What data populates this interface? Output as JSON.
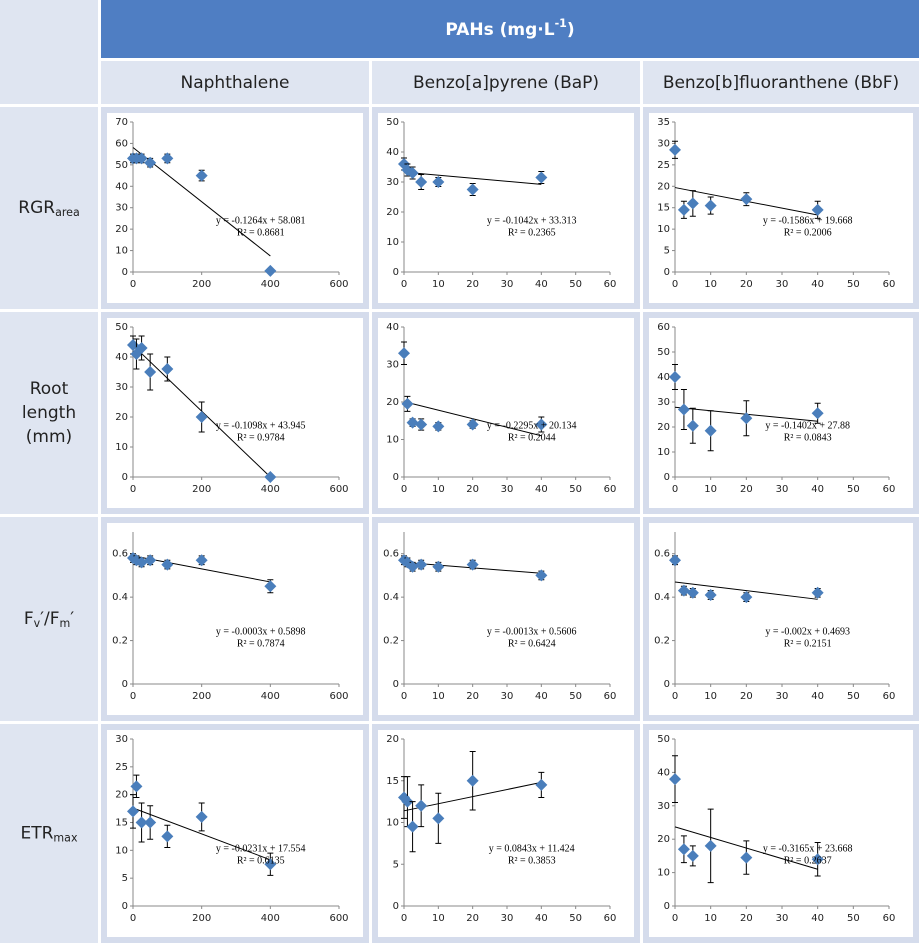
{
  "table": {
    "header": [
      {
        "text": "PAHs (mg·L"
      },
      {
        "text": "-1",
        "sup": true
      },
      {
        "text": ")"
      }
    ],
    "columns": [
      "Naphthalene",
      "Benzo[a]pyrene (BaP)",
      "Benzo[b]fluoranthene (BbF)"
    ],
    "rows": [
      [
        [
          {
            "text": "RGR"
          },
          {
            "text": "area",
            "sub": true
          }
        ]
      ],
      [
        [
          {
            "text": "Root"
          }
        ],
        [
          {
            "text": "length"
          }
        ],
        [
          {
            "text": "(mm)"
          }
        ]
      ],
      [
        [
          {
            "text": "F"
          },
          {
            "text": "v",
            "sub": true
          },
          {
            "text": "′/F"
          },
          {
            "text": "m",
            "sub": true
          },
          {
            "text": "′"
          }
        ]
      ],
      [
        [
          {
            "text": "ETR"
          },
          {
            "text": "max",
            "sub": true
          }
        ]
      ]
    ]
  },
  "chart_data": [
    {
      "type": "scatter",
      "x": [
        0,
        10,
        25,
        50,
        100,
        200,
        400
      ],
      "series": [
        {
          "color": "#4a7ebb",
          "values": [
            53,
            53,
            53,
            51,
            53,
            45,
            0.5
          ],
          "errors": [
            2,
            2,
            2,
            2,
            2,
            2.5,
            0.5
          ]
        }
      ],
      "trendline": {
        "x": [
          0,
          400
        ],
        "y": [
          58.1,
          7.5
        ]
      },
      "equation": "y = -0.1264x + 58.081",
      "r_squared": "R² = 0.8681",
      "xlim": [
        0,
        600
      ],
      "xticks": [
        0,
        200,
        400,
        600
      ],
      "ylim": [
        0,
        70
      ],
      "yticks": [
        0,
        10,
        20,
        30,
        40,
        50,
        60,
        70
      ]
    },
    {
      "type": "scatter",
      "x": [
        0,
        1,
        2.5,
        5,
        10,
        20,
        40
      ],
      "series": [
        {
          "color": "#4a7ebb",
          "values": [
            36,
            34,
            33,
            30,
            30,
            27.5,
            31.5
          ],
          "errors": [
            2,
            2,
            2,
            2.5,
            1.5,
            2,
            2
          ]
        }
      ],
      "trendline": {
        "x": [
          0,
          40
        ],
        "y": [
          33.3,
          29.2
        ]
      },
      "equation": "y = -0.1042x + 33.313",
      "r_squared": "R² = 0.2365",
      "xlim": [
        0,
        60
      ],
      "xticks": [
        0,
        10,
        20,
        30,
        40,
        50,
        60
      ],
      "ylim": [
        0,
        50
      ],
      "yticks": [
        0,
        10,
        20,
        30,
        40,
        50
      ]
    },
    {
      "type": "scatter",
      "x": [
        0,
        2.5,
        5,
        10,
        20,
        40
      ],
      "series": [
        {
          "color": "#4a7ebb",
          "values": [
            28.5,
            14.5,
            16,
            15.5,
            17,
            14.5
          ],
          "errors": [
            2,
            2,
            3,
            2,
            1.5,
            2
          ]
        }
      ],
      "trendline": {
        "x": [
          0,
          40
        ],
        "y": [
          19.7,
          13.3
        ]
      },
      "equation": "y = -0.1586x + 19.668",
      "r_squared": "R² = 0.2006",
      "xlim": [
        0,
        60
      ],
      "xticks": [
        0,
        10,
        20,
        30,
        40,
        50,
        60
      ],
      "ylim": [
        0,
        35
      ],
      "yticks": [
        0,
        5,
        10,
        15,
        20,
        25,
        30,
        35
      ]
    },
    {
      "type": "scatter",
      "x": [
        0,
        10,
        25,
        50,
        100,
        200,
        400
      ],
      "series": [
        {
          "color": "#4a7ebb",
          "values": [
            44,
            41,
            43,
            35,
            36,
            20,
            0
          ],
          "errors": [
            3,
            5,
            4,
            6,
            4,
            5,
            0
          ]
        }
      ],
      "trendline": {
        "x": [
          0,
          400
        ],
        "y": [
          43.9,
          0
        ]
      },
      "equation": "y = -0.1098x + 43.945",
      "r_squared": "R² = 0.9784",
      "xlim": [
        0,
        600
      ],
      "xticks": [
        0,
        200,
        400,
        600
      ],
      "ylim": [
        0,
        50
      ],
      "yticks": [
        0,
        10,
        20,
        30,
        40,
        50
      ]
    },
    {
      "type": "scatter",
      "x": [
        0,
        1,
        2.5,
        5,
        10,
        20,
        40
      ],
      "series": [
        {
          "color": "#4a7ebb",
          "values": [
            33,
            19.5,
            14.5,
            14,
            13.5,
            14,
            14
          ],
          "errors": [
            3,
            2,
            1,
            1.5,
            1,
            1,
            2
          ]
        }
      ],
      "trendline": {
        "x": [
          0,
          40
        ],
        "y": [
          20.1,
          11
        ]
      },
      "equation": "y = -0.2295x + 20.134",
      "r_squared": "R² = 0.2044",
      "xlim": [
        0,
        60
      ],
      "xticks": [
        0,
        10,
        20,
        30,
        40,
        50,
        60
      ],
      "ylim": [
        0,
        40
      ],
      "yticks": [
        0,
        10,
        20,
        30,
        40
      ]
    },
    {
      "type": "scatter",
      "x": [
        0,
        2.5,
        5,
        10,
        20,
        40
      ],
      "series": [
        {
          "color": "#4a7ebb",
          "values": [
            40,
            27,
            20.5,
            18.5,
            23.5,
            25.5
          ],
          "errors": [
            5,
            8,
            7,
            8,
            7,
            4
          ]
        }
      ],
      "trendline": {
        "x": [
          0,
          40
        ],
        "y": [
          27.9,
          22.3
        ]
      },
      "equation": "y = -0.1402x + 27.88",
      "r_squared": "R² = 0.0843",
      "xlim": [
        0,
        60
      ],
      "xticks": [
        0,
        10,
        20,
        30,
        40,
        50,
        60
      ],
      "ylim": [
        0,
        60
      ],
      "yticks": [
        0,
        10,
        20,
        30,
        40,
        50,
        60
      ]
    },
    {
      "type": "scatter",
      "x": [
        0,
        10,
        25,
        50,
        100,
        200,
        400
      ],
      "series": [
        {
          "color": "#4a7ebb",
          "values": [
            0.58,
            0.57,
            0.56,
            0.57,
            0.55,
            0.57,
            0.45
          ],
          "errors": [
            0.02,
            0.02,
            0.02,
            0.02,
            0.02,
            0.02,
            0.03
          ]
        }
      ],
      "trendline": {
        "x": [
          0,
          400
        ],
        "y": [
          0.59,
          0.47
        ]
      },
      "equation": "y = -0.0003x + 0.5898",
      "r_squared": "R² = 0.7874",
      "xlim": [
        0,
        600
      ],
      "xticks": [
        0,
        200,
        400,
        600
      ],
      "ylim": [
        0,
        0.7
      ],
      "yticks": [
        0,
        0.2,
        0.4,
        0.6
      ]
    },
    {
      "type": "scatter",
      "x": [
        0,
        1,
        2.5,
        5,
        10,
        20,
        40
      ],
      "series": [
        {
          "color": "#4a7ebb",
          "values": [
            0.57,
            0.56,
            0.54,
            0.55,
            0.54,
            0.55,
            0.5
          ],
          "errors": [
            0.02,
            0.02,
            0.02,
            0.02,
            0.02,
            0.02,
            0.02
          ]
        }
      ],
      "trendline": {
        "x": [
          0,
          40
        ],
        "y": [
          0.56,
          0.51
        ]
      },
      "equation": "y = -0.0013x + 0.5606",
      "r_squared": "R² = 0.6424",
      "xlim": [
        0,
        60
      ],
      "xticks": [
        0,
        10,
        20,
        30,
        40,
        50,
        60
      ],
      "ylim": [
        0,
        0.7
      ],
      "yticks": [
        0,
        0.2,
        0.4,
        0.6
      ]
    },
    {
      "type": "scatter",
      "x": [
        0,
        2.5,
        5,
        10,
        20,
        40
      ],
      "series": [
        {
          "color": "#4a7ebb",
          "values": [
            0.57,
            0.43,
            0.42,
            0.41,
            0.4,
            0.42
          ],
          "errors": [
            0.02,
            0.02,
            0.02,
            0.02,
            0.02,
            0.02
          ]
        }
      ],
      "trendline": {
        "x": [
          0,
          40
        ],
        "y": [
          0.47,
          0.39
        ]
      },
      "equation": "y = -0.002x + 0.4693",
      "r_squared": "R² = 0.2151",
      "xlim": [
        0,
        60
      ],
      "xticks": [
        0,
        10,
        20,
        30,
        40,
        50,
        60
      ],
      "ylim": [
        0,
        0.7
      ],
      "yticks": [
        0,
        0.2,
        0.4,
        0.6
      ]
    },
    {
      "type": "scatter",
      "x": [
        0,
        10,
        25,
        50,
        100,
        200,
        400
      ],
      "series": [
        {
          "color": "#4a7ebb",
          "values": [
            17,
            21.5,
            15,
            15,
            12.5,
            16,
            7.5
          ],
          "errors": [
            3,
            2,
            3.5,
            3,
            2,
            2.5,
            2
          ]
        }
      ],
      "trendline": {
        "x": [
          0,
          400
        ],
        "y": [
          17.6,
          8.3
        ]
      },
      "equation": "y = -0.0231x + 17.554",
      "r_squared": "R² = 0.6135",
      "xlim": [
        0,
        600
      ],
      "xticks": [
        0,
        200,
        400,
        600
      ],
      "ylim": [
        0,
        30
      ],
      "yticks": [
        0,
        5,
        10,
        15,
        20,
        25,
        30
      ]
    },
    {
      "type": "scatter",
      "x": [
        0,
        1,
        2.5,
        5,
        10,
        20,
        40
      ],
      "series": [
        {
          "color": "#4a7ebb",
          "values": [
            13,
            12.5,
            9.5,
            12,
            10.5,
            15,
            14.5
          ],
          "errors": [
            2.5,
            3,
            3,
            2.5,
            3,
            3.5,
            1.5
          ]
        }
      ],
      "trendline": {
        "x": [
          0,
          40
        ],
        "y": [
          11.4,
          14.8
        ]
      },
      "equation": "y = 0.0843x + 11.424",
      "r_squared": "R² = 0.3853",
      "xlim": [
        0,
        60
      ],
      "xticks": [
        0,
        10,
        20,
        30,
        40,
        50,
        60
      ],
      "ylim": [
        0,
        20
      ],
      "yticks": [
        0,
        5,
        10,
        15,
        20
      ]
    },
    {
      "type": "scatter",
      "x": [
        0,
        2.5,
        5,
        10,
        20,
        40
      ],
      "series": [
        {
          "color": "#4a7ebb",
          "values": [
            38,
            17,
            15,
            18,
            14.5,
            14
          ],
          "errors": [
            7,
            4,
            3,
            11,
            5,
            5
          ]
        }
      ],
      "trendline": {
        "x": [
          0,
          40
        ],
        "y": [
          23.7,
          11
        ]
      },
      "equation": "y = -0.3165x + 23.668",
      "r_squared": "R² = 0.2637",
      "xlim": [
        0,
        60
      ],
      "xticks": [
        0,
        10,
        20,
        30,
        40,
        50,
        60
      ],
      "ylim": [
        0,
        50
      ],
      "yticks": [
        0,
        10,
        20,
        30,
        40,
        50
      ]
    }
  ]
}
